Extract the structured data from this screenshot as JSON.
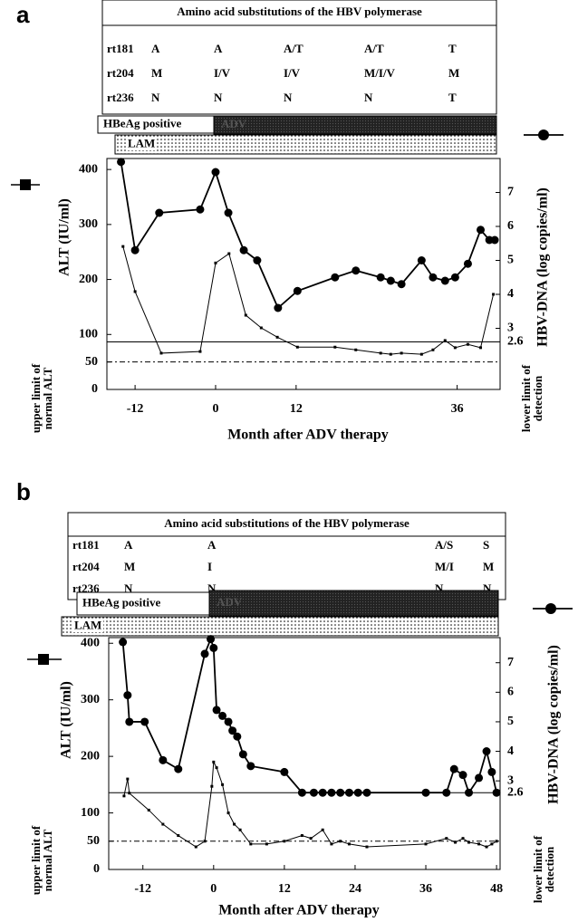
{
  "chart_data": [
    {
      "type": "line",
      "panel_label": "a",
      "table": {
        "title": "Amino acid substitutions of the HBV polymerase",
        "rows": [
          [
            "rt181",
            "A",
            "A",
            "A/T",
            "A/T",
            "T"
          ],
          [
            "rt204",
            "M",
            "I/V",
            "I/V",
            "M/I/V",
            "M"
          ],
          [
            "rt236",
            "N",
            "N",
            "N",
            "N",
            "T"
          ]
        ]
      },
      "hbeag_label": "HBeAg positive",
      "adv_label": "ADV",
      "lam_label": "LAM",
      "xlabel": "Month after ADV therapy",
      "ylabel": "ALT (IU/ml)",
      "y2label": "HBV-DNA (log copies/ml)",
      "upper_limit_label": "upper limit of normal ALT",
      "lower_limit_label": "lower limit of detection",
      "xlim": [
        -16.2,
        42.4
      ],
      "xticks": [
        -12,
        0,
        12,
        36
      ],
      "ylim": [
        0,
        420
      ],
      "yticks": [
        0,
        50,
        100,
        200,
        300,
        400
      ],
      "y2lim": [
        1.2,
        8
      ],
      "y2ticks": [
        2.6,
        3,
        4,
        5,
        6,
        7
      ],
      "reference_lines": [
        {
          "axis": "y2",
          "value": 2.6,
          "style": "solid"
        },
        {
          "axis": "y",
          "value": 50,
          "style": "dashdot"
        }
      ],
      "series": [
        {
          "marker": "square",
          "color": "#000000",
          "x": [
            -13.8,
            -12.0,
            -8.1,
            -2.3,
            0,
            2.0,
            4.5,
            6.8,
            9.2,
            12.2,
            17.8,
            20.9,
            24.6,
            26.1,
            27.7,
            30.7,
            32.4,
            34.2,
            35.7,
            37.6,
            39.5,
            41.4
          ],
          "values": [
            260,
            178,
            66,
            69,
            230,
            247,
            135,
            112,
            95,
            77,
            77,
            72,
            66,
            64,
            66,
            64,
            72,
            89,
            76,
            82,
            76,
            173
          ]
        },
        {
          "marker": "circle",
          "color": "#000000",
          "axis": "y2",
          "x": [
            -14.1,
            -12.0,
            -8.4,
            -2.3,
            0,
            1.9,
            4.2,
            6.2,
            9.3,
            12.2,
            17.8,
            20.9,
            24.6,
            26.1,
            27.7,
            30.7,
            32.4,
            34.2,
            35.7,
            37.6,
            39.5,
            40.8,
            41.6
          ],
          "values": [
            7.9,
            5.3,
            6.4,
            6.5,
            7.6,
            6.4,
            5.3,
            5.0,
            3.6,
            4.1,
            4.5,
            4.7,
            4.5,
            4.4,
            4.3,
            5.0,
            4.5,
            4.4,
            4.5,
            4.9,
            5.9,
            5.6,
            5.6
          ]
        }
      ]
    },
    {
      "type": "line",
      "panel_label": "b",
      "table": {
        "title": "Amino acid substitutions of the HBV polymerase",
        "rows": [
          [
            "rt181",
            "A",
            "A",
            "A/S",
            "S"
          ],
          [
            "rt204",
            "M",
            "I",
            "M/I",
            "M"
          ],
          [
            "rt236",
            "N",
            "N",
            "N",
            "N"
          ]
        ]
      },
      "hbeag_label": "HBeAg positive",
      "adv_label": "ADV",
      "lam_label": "LAM",
      "xlabel": "Month after ADV therapy",
      "ylabel": "ALT (IU/ml)",
      "y2label": "HBV-DNA (log copies/ml)",
      "upper_limit_label": "upper limit of normal ALT",
      "lower_limit_label": "lower limit of detection",
      "xlim": [
        -17.8,
        48.6
      ],
      "xticks": [
        -12,
        0,
        12,
        24,
        36,
        48
      ],
      "ylim": [
        0,
        410
      ],
      "yticks": [
        0,
        50,
        100,
        200,
        300,
        400
      ],
      "y2lim": [
        0,
        7.85
      ],
      "y2ticks": [
        2.6,
        3,
        4,
        5,
        6,
        7
      ],
      "reference_lines": [
        {
          "axis": "y2",
          "value": 2.6,
          "style": "solid"
        },
        {
          "axis": "y",
          "value": 50,
          "style": "dashdot"
        }
      ],
      "series": [
        {
          "marker": "square",
          "color": "#000000",
          "x": [
            -15.2,
            -14.6,
            -14.3,
            -11,
            -8.6,
            -6,
            -3,
            -1.5,
            -0.3,
            0,
            0.5,
            1.5,
            2.5,
            3.5,
            4.5,
            6.3,
            9,
            12,
            15,
            16.5,
            18.5,
            20,
            21.5,
            23,
            26,
            36,
            39.5,
            41,
            42.3,
            43.3,
            45,
            46.3,
            47.2,
            48
          ],
          "values": [
            130,
            160,
            135,
            105,
            80,
            60,
            40,
            50,
            147,
            190,
            180,
            150,
            100,
            80,
            70,
            45,
            45,
            50,
            60,
            55,
            70,
            45,
            50,
            45,
            40,
            45,
            55,
            48,
            55,
            48,
            45,
            40,
            45,
            50
          ]
        },
        {
          "marker": "circle",
          "color": "#000000",
          "axis": "y2",
          "x": [
            -15.4,
            -14.6,
            -14.3,
            -11.7,
            -8.6,
            -6.0,
            -1.5,
            -0.5,
            0,
            0.5,
            1.5,
            2.5,
            3.2,
            4.0,
            5.0,
            6.3,
            12.0,
            15,
            17,
            18.5,
            20,
            21.5,
            23,
            24.5,
            26,
            36,
            39.5,
            40.8,
            42.3,
            43.3,
            45,
            46.3,
            47.2,
            48
          ],
          "values": [
            7.7,
            5.9,
            5.0,
            5.0,
            3.7,
            3.4,
            7.3,
            7.8,
            7.5,
            5.4,
            5.2,
            5.0,
            4.7,
            4.5,
            3.9,
            3.5,
            3.3,
            2.6,
            2.6,
            2.6,
            2.6,
            2.6,
            2.6,
            2.6,
            2.6,
            2.6,
            2.6,
            3.4,
            3.2,
            2.6,
            3.1,
            4.0,
            3.3,
            2.6
          ]
        }
      ]
    }
  ]
}
